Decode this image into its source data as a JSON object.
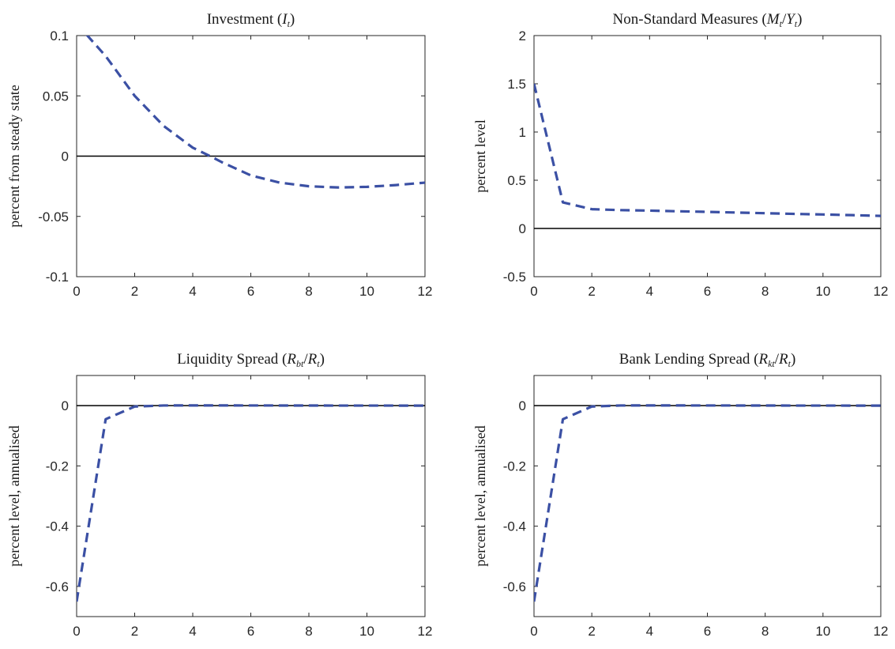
{
  "colors": {
    "series": "#3b50a4",
    "zero_line": "#000000",
    "axis": "#262626"
  },
  "chart_data": [
    {
      "type": "line",
      "title": {
        "text": "Investment (",
        "var": "I",
        "sub": "t",
        "close": ")"
      },
      "ylabel": "percent from steady state",
      "xlim": [
        0,
        12
      ],
      "ylim": [
        -0.1,
        0.1
      ],
      "xticks": [
        0,
        2,
        4,
        6,
        8,
        10,
        12
      ],
      "xtick_labels": [
        "0",
        "2",
        "4",
        "6",
        "8",
        "10",
        "12"
      ],
      "yticks": [
        -0.1,
        -0.05,
        0,
        0.05,
        0.1
      ],
      "ytick_labels": [
        "-0.1",
        "-0.05",
        "0",
        "0.05",
        "0.1"
      ],
      "zero_line": true,
      "series": [
        {
          "line_style": "dashed",
          "x": [
            0,
            1,
            2,
            3,
            4,
            4.6,
            5,
            6,
            7,
            8,
            9,
            10,
            11,
            12
          ],
          "y": [
            0.11,
            0.083,
            0.05,
            0.025,
            0.007,
            0,
            -0.005,
            -0.016,
            -0.022,
            -0.025,
            -0.026,
            -0.0255,
            -0.024,
            -0.022
          ]
        }
      ]
    },
    {
      "type": "line",
      "title": {
        "text": "Non-Standard Measures (",
        "var": "M",
        "sub": "t",
        "mid": "/",
        "var2": "Y",
        "sub2": "t",
        "close": ")"
      },
      "ylabel": "percent level",
      "xlim": [
        0,
        12
      ],
      "ylim": [
        -0.5,
        2
      ],
      "xticks": [
        0,
        2,
        4,
        6,
        8,
        10,
        12
      ],
      "xtick_labels": [
        "0",
        "2",
        "4",
        "6",
        "8",
        "10",
        "12"
      ],
      "yticks": [
        -0.5,
        0,
        0.5,
        1,
        1.5,
        2
      ],
      "ytick_labels": [
        "-0.5",
        "0",
        "0.5",
        "1",
        "1.5",
        "2"
      ],
      "zero_line": true,
      "series": [
        {
          "line_style": "dashed",
          "x": [
            0,
            1,
            2,
            3,
            4,
            5,
            6,
            7,
            8,
            9,
            10,
            11,
            12
          ],
          "y": [
            1.5,
            0.27,
            0.2,
            0.19,
            0.185,
            0.178,
            0.172,
            0.165,
            0.158,
            0.151,
            0.145,
            0.138,
            0.13
          ]
        }
      ]
    },
    {
      "type": "line",
      "title": {
        "text": "Liquidity Spread (",
        "var": "R",
        "sub": "bt",
        "mid": "/",
        "var2": "R",
        "sub2": "t",
        "close": ")"
      },
      "ylabel": "percent level, annualised",
      "xlim": [
        0,
        12
      ],
      "ylim": [
        -0.7,
        0.1
      ],
      "xticks": [
        0,
        2,
        4,
        6,
        8,
        10,
        12
      ],
      "xtick_labels": [
        "0",
        "2",
        "4",
        "6",
        "8",
        "10",
        "12"
      ],
      "yticks": [
        -0.6,
        -0.4,
        -0.2,
        0
      ],
      "ytick_labels": [
        "-0.6",
        "-0.4",
        "-0.2",
        "0"
      ],
      "zero_line": true,
      "series": [
        {
          "line_style": "dashed",
          "x": [
            0,
            1,
            2,
            3,
            4,
            5,
            6,
            7,
            8,
            9,
            10,
            11,
            12
          ],
          "y": [
            -0.65,
            -0.045,
            -0.003,
            0.0005,
            0.0007,
            0.0006,
            0.0005,
            0.0004,
            0.0003,
            0.0002,
            0.0002,
            0.0001,
            0.0001
          ]
        }
      ]
    },
    {
      "type": "line",
      "title": {
        "text": "Bank Lending Spread (",
        "var": "R",
        "sub": "kt",
        "mid": "/",
        "var2": "R",
        "sub2": "t",
        "close": ")"
      },
      "ylabel": "percent level, annualised",
      "xlim": [
        0,
        12
      ],
      "ylim": [
        -0.7,
        0.1
      ],
      "xticks": [
        0,
        2,
        4,
        6,
        8,
        10,
        12
      ],
      "xtick_labels": [
        "0",
        "2",
        "4",
        "6",
        "8",
        "10",
        "12"
      ],
      "yticks": [
        -0.6,
        -0.4,
        -0.2,
        0
      ],
      "ytick_labels": [
        "-0.6",
        "-0.4",
        "-0.2",
        "0"
      ],
      "zero_line": true,
      "series": [
        {
          "line_style": "dashed",
          "x": [
            0,
            1,
            2,
            3,
            4,
            5,
            6,
            7,
            8,
            9,
            10,
            11,
            12
          ],
          "y": [
            -0.65,
            -0.045,
            -0.003,
            0.0005,
            0.0007,
            0.0006,
            0.0005,
            0.0004,
            0.0003,
            0.0002,
            0.0002,
            0.0001,
            0.0001
          ]
        }
      ]
    }
  ]
}
